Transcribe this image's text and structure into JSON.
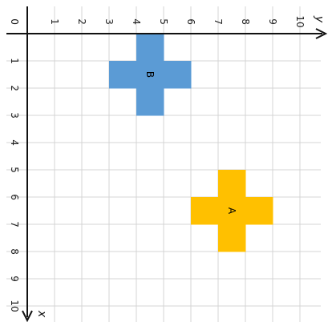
{
  "axes": {
    "horizontal_label": "y",
    "vertical_label": "x",
    "origin_label": "0",
    "horizontal_ticks": [
      "1",
      "2",
      "3",
      "4",
      "5",
      "6",
      "7",
      "8",
      "9",
      "10"
    ],
    "vertical_ticks": [
      "1",
      "2",
      "3",
      "4",
      "5",
      "6",
      "7",
      "8",
      "9",
      "10"
    ],
    "range": [
      0,
      10
    ]
  },
  "grid": true,
  "colors": {
    "grid": "#d4d4d4",
    "axis": "#111111",
    "shape_a": "#ffc000",
    "shape_b": "#5b9bd5"
  },
  "shapes": [
    {
      "label": "B",
      "color": "#5b9bd5",
      "cells": [
        [
          1,
          5
        ],
        [
          2,
          4
        ],
        [
          2,
          5
        ],
        [
          2,
          6
        ],
        [
          3,
          5
        ]
      ]
    },
    {
      "label": "A",
      "color": "#ffc000",
      "cells": [
        [
          6,
          8
        ],
        [
          7,
          7
        ],
        [
          7,
          8
        ],
        [
          7,
          9
        ],
        [
          8,
          8
        ]
      ]
    }
  ]
}
